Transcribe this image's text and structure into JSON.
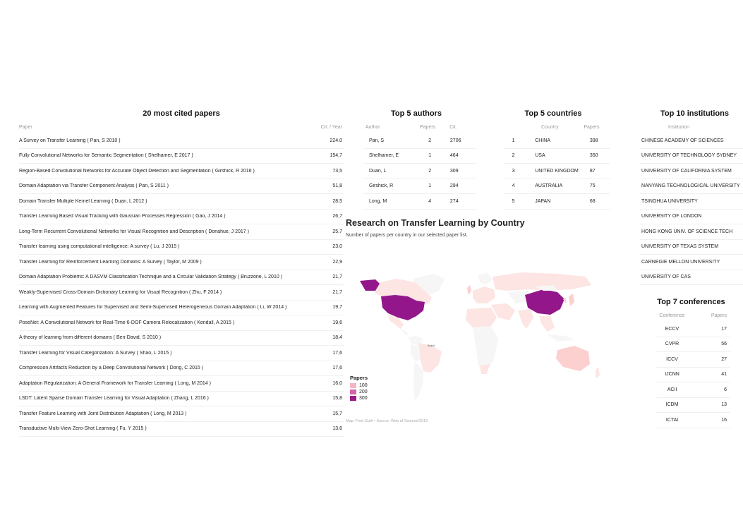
{
  "papers": {
    "title": "20 most cited papers",
    "col_paper": "Paper",
    "col_cit": "Cit. / Year",
    "rows": [
      {
        "paper": "A Survey on Transfer Learning ( Pan, S  2010 )",
        "cit": "224,0"
      },
      {
        "paper": "Fully Convolutional Networks for Semantic Segmentation ( Shelhamer, E  2017 )",
        "cit": "154,7"
      },
      {
        "paper": "Region-Based Convolutional Networks for Accurate Object Detection and Segmentation ( Girshick, R  2016 )",
        "cit": "73,5"
      },
      {
        "paper": "Domain Adaptation via Transfer Component Analysis ( Pan, S  2011 )",
        "cit": "51,8"
      },
      {
        "paper": "Domain Transfer Multiple Kernel Learning ( Duan, L  2012 )",
        "cit": "28,5"
      },
      {
        "paper": "Transfer Learning Based Visual Tracking with Gaussian Processes Regression ( Gao, J  2014 )",
        "cit": "26,7"
      },
      {
        "paper": "Long-Term Recurrent Convolutional Networks for Visual Recognition and Description ( Donahue, J  2017 )",
        "cit": "25,7"
      },
      {
        "paper": "Transfer learning using computational intelligence: A survey ( Lu, J  2015 )",
        "cit": "23,0"
      },
      {
        "paper": "Transfer Learning for Reinforcement Learning Domains: A Survey ( Taylor, M  2009 )",
        "cit": "22,9"
      },
      {
        "paper": "Domain Adaptation Problems: A DASVM Classification Technique and a Circular Validation Strategy ( Bruzzone, L  2010 )",
        "cit": "21,7"
      },
      {
        "paper": "Weakly-Supervised Cross-Domain Dictionary Learning for Visual Recognition ( Zhu, F  2014 )",
        "cit": "21,7"
      },
      {
        "paper": "Learning with Augmented Features for Supervised and Semi-Supervised Heterogeneous Domain Adaptation ( Li, W  2014 )",
        "cit": "19,7"
      },
      {
        "paper": "PoseNet: A Convolutional Network for Real-Time 6-DOF Camera Relocalization ( Kendall, A  2015 )",
        "cit": "19,6"
      },
      {
        "paper": "A theory of learning from different domains ( Ben-David, S  2010 )",
        "cit": "18,4"
      },
      {
        "paper": "Transfer Learning for Visual Categorization: A Survey ( Shao, L  2015 )",
        "cit": "17,6"
      },
      {
        "paper": "Compression Artifacts Reduction by a Deep Convolutional Network ( Dong, C  2015 )",
        "cit": "17,6"
      },
      {
        "paper": "Adaptation Regularization: A General Framework for Transfer Learning ( Long, M  2014 )",
        "cit": "16,0"
      },
      {
        "paper": "LSDT: Latent Sparse Domain Transfer Learning for Visual Adaptation ( Zhang, L  2016 )",
        "cit": "15,8"
      },
      {
        "paper": "Transfer Feature Learning with Joint Distribution Adaptation ( Long, M  2013 )",
        "cit": "15,7"
      },
      {
        "paper": "Transductive Multi-View Zero-Shot Learning ( Fu, Y  2015 )",
        "cit": "13,6"
      }
    ]
  },
  "authors": {
    "title": "Top 5 authors",
    "col_author": "Author",
    "col_papers": "Papers",
    "col_cit": "Cit.",
    "rows": [
      {
        "name": "Pan, S",
        "papers": "2",
        "cit": "2706"
      },
      {
        "name": "Shelhamer, E",
        "papers": "1",
        "cit": "464"
      },
      {
        "name": "Duan, L",
        "papers": "2",
        "cit": "309"
      },
      {
        "name": "Girshick, R",
        "papers": "1",
        "cit": "294"
      },
      {
        "name": "Long, M",
        "papers": "4",
        "cit": "274"
      }
    ]
  },
  "countries": {
    "title": "Top 5 countries",
    "col_country": "Country",
    "col_papers": "Papers",
    "rows": [
      {
        "rank": "1",
        "country": "CHINA",
        "papers": "398"
      },
      {
        "rank": "2",
        "country": "USA",
        "papers": "350"
      },
      {
        "rank": "3",
        "country": "UNITED KINGDOM",
        "papers": "87"
      },
      {
        "rank": "4",
        "country": "AUSTRALIA",
        "papers": "75"
      },
      {
        "rank": "5",
        "country": "JAPAN",
        "papers": "68"
      }
    ]
  },
  "institutions": {
    "title": "Top 10 institutions",
    "col_inst": "Institution",
    "rows": [
      "CHINESE ACADEMY OF SCIENCES",
      "UNIVERSITY OF TECHNOLOGY SYDNEY",
      "UNIVERSITY OF CALIFORNIA SYSTEM",
      "NANYANG TECHNOLOGICAL UNIVERSITY",
      "TSINGHUA UNIVERSITY",
      "UNIVERSITY OF LONDON",
      "HONG KONG UNIV. OF SCIENCE TECH",
      "UNIVERSITY OF TEXAS SYSTEM",
      "CARNEGIE MELLON UNIVERSITY",
      "UNIVERSITY OF CAS"
    ]
  },
  "conferences": {
    "title": "Top 7 conferences",
    "col_conf": "Conference",
    "col_papers": "Papers",
    "rows": [
      {
        "name": "ECCV",
        "papers": "17"
      },
      {
        "name": "CVPR",
        "papers": "56"
      },
      {
        "name": "ICCV",
        "papers": "27"
      },
      {
        "name": "IJCNN",
        "papers": "41"
      },
      {
        "name": "ACII",
        "papers": "6"
      },
      {
        "name": "ICDM",
        "papers": "13"
      },
      {
        "name": "ICTAI",
        "papers": "16"
      }
    ]
  },
  "map": {
    "title": "Research on Transfer Learning by Country",
    "subtitle": "Number of papers per country in our selected paper list.",
    "source": "Map: Fred Guth • Source: Web of Science/2019",
    "brazil_label": "Brazil",
    "legend_title": "Papers",
    "legend": [
      {
        "label": "100",
        "color": "#f4b6c8"
      },
      {
        "label": "200",
        "color": "#d165a6"
      },
      {
        "label": "300",
        "color": "#9c1a87"
      }
    ],
    "colors": {
      "none": "#f6f6f6",
      "low": "#fde5e3",
      "mid": "#fbd0cf",
      "high": "#93178a"
    }
  },
  "chart_data": [
    {
      "type": "table",
      "title": "20 most cited papers",
      "columns": [
        "Paper",
        "Cit. / Year"
      ],
      "values": [
        224.0,
        154.7,
        73.5,
        51.8,
        28.5,
        26.7,
        25.7,
        23.0,
        22.9,
        21.7,
        21.7,
        19.7,
        19.6,
        18.4,
        17.6,
        17.6,
        16.0,
        15.8,
        15.7,
        13.6
      ]
    },
    {
      "type": "table",
      "title": "Top 5 authors",
      "columns": [
        "Author",
        "Papers",
        "Cit."
      ],
      "categories": [
        "Pan, S",
        "Shelhamer, E",
        "Duan, L",
        "Girshick, R",
        "Long, M"
      ],
      "series": [
        {
          "name": "Papers",
          "values": [
            2,
            1,
            2,
            1,
            4
          ]
        },
        {
          "name": "Cit.",
          "values": [
            2706,
            464,
            309,
            294,
            274
          ]
        }
      ]
    },
    {
      "type": "table",
      "title": "Top 5 countries",
      "columns": [
        "Country",
        "Papers"
      ],
      "categories": [
        "CHINA",
        "USA",
        "UNITED KINGDOM",
        "AUSTRALIA",
        "JAPAN"
      ],
      "values": [
        398,
        350,
        87,
        75,
        68
      ]
    },
    {
      "type": "table",
      "title": "Top 7 conferences",
      "columns": [
        "Conference",
        "Papers"
      ],
      "categories": [
        "ECCV",
        "CVPR",
        "ICCV",
        "IJCNN",
        "ACII",
        "ICDM",
        "ICTAI"
      ],
      "values": [
        17,
        56,
        27,
        41,
        6,
        13,
        16
      ]
    },
    {
      "type": "heatmap",
      "title": "Research on Transfer Learning by Country",
      "subtitle": "Number of papers per country in our selected paper list.",
      "legend_title": "Papers",
      "legend_ticks": [
        100,
        200,
        300
      ],
      "categories": [
        "CHINA",
        "USA",
        "UNITED KINGDOM",
        "AUSTRALIA",
        "JAPAN"
      ],
      "values": [
        398,
        350,
        87,
        75,
        68
      ]
    }
  ]
}
